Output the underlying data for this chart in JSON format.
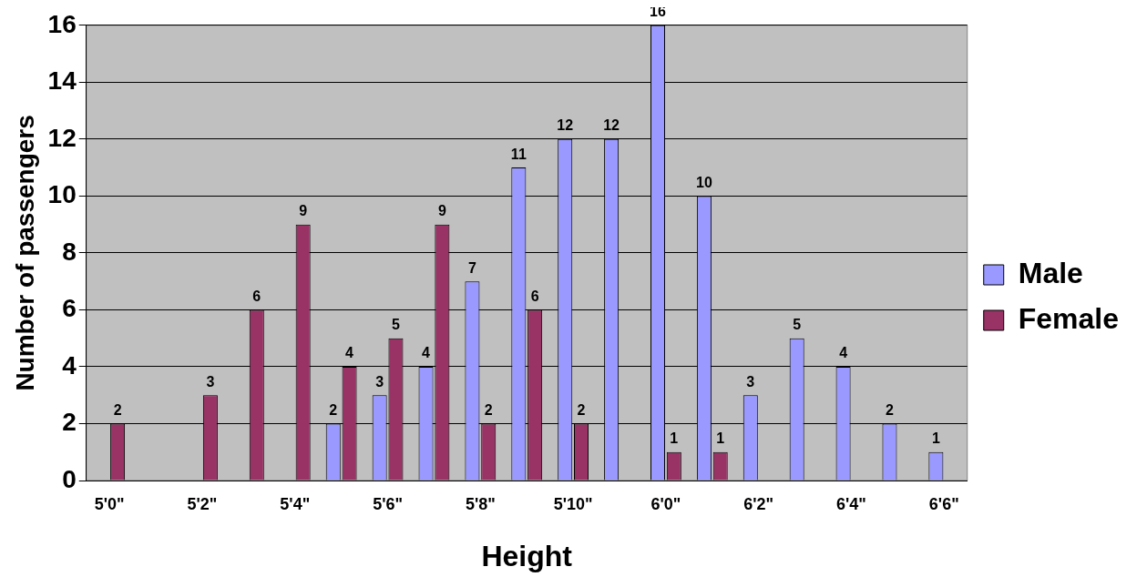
{
  "chart_data": {
    "type": "bar",
    "xlabel": "Height",
    "ylabel": "Number of passengers",
    "categories": [
      "5'0\"",
      null,
      "5'2\"",
      null,
      "5'4\"",
      null,
      "5'6\"",
      null,
      "5'8\"",
      null,
      "5'10\"",
      null,
      "6'0\"",
      null,
      "6'2\"",
      null,
      "6'4\"",
      null,
      "6'6\""
    ],
    "series": [
      {
        "name": "Male",
        "color": "#9999ff",
        "values": [
          null,
          null,
          null,
          null,
          null,
          2,
          3,
          4,
          7,
          11,
          12,
          12,
          16,
          10,
          3,
          5,
          4,
          2,
          1
        ]
      },
      {
        "name": "Female",
        "color": "#993366",
        "values": [
          2,
          null,
          3,
          6,
          9,
          4,
          5,
          9,
          2,
          6,
          2,
          null,
          1,
          1,
          null,
          null,
          null,
          null,
          null
        ]
      }
    ],
    "ylim": [
      0,
      16
    ],
    "yticks": [
      0,
      2,
      4,
      6,
      8,
      10,
      12,
      14,
      16
    ],
    "grid": "y",
    "legend": "right",
    "data_labels": true
  }
}
